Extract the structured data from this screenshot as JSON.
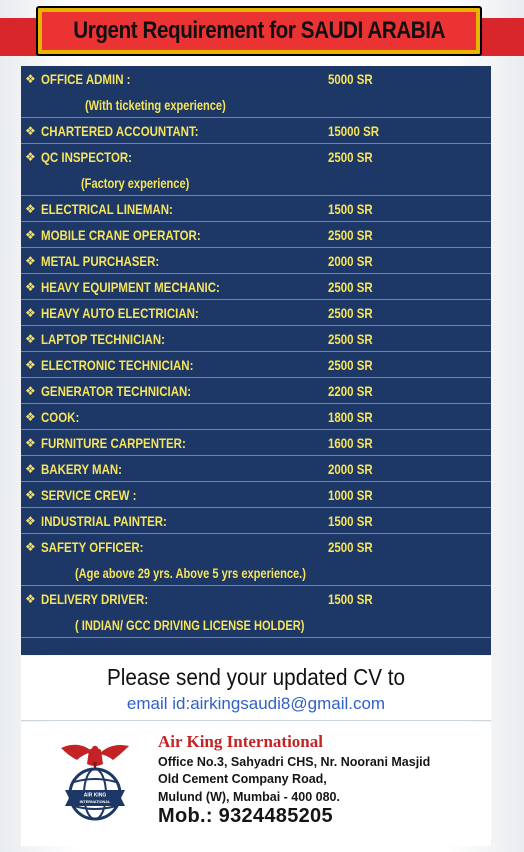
{
  "header": {
    "title": "Urgent Requirement for SAUDI ARABIA"
  },
  "colors": {
    "banner_red": "#ec3333",
    "banner_gold": "#e8b400",
    "panel_blue": "#1d3766",
    "job_text_yellow": "#f6e45a",
    "email_blue": "#3160c8",
    "company_red": "#c32324"
  },
  "jobs": [
    {
      "title": "OFFICE ADMIN :",
      "salary": "5000 SR",
      "note": "(With ticketing experience)"
    },
    {
      "title": "CHARTERED ACCOUNTANT:",
      "salary": "15000 SR",
      "note": null
    },
    {
      "title": "QC INSPECTOR:",
      "salary": "2500 SR",
      "note": "(Factory experience)"
    },
    {
      "title": "ELECTRICAL LINEMAN:",
      "salary": "1500 SR",
      "note": null
    },
    {
      "title": "MOBILE CRANE OPERATOR:",
      "salary": "2500 SR",
      "note": null
    },
    {
      "title": "METAL PURCHASER:",
      "salary": "2000 SR",
      "note": null
    },
    {
      "title": "HEAVY EQUIPMENT MECHANIC:",
      "salary": "2500 SR",
      "note": null
    },
    {
      "title": "HEAVY AUTO ELECTRICIAN:",
      "salary": "2500 SR",
      "note": null
    },
    {
      "title": "LAPTOP TECHNICIAN:",
      "salary": "2500 SR",
      "note": null
    },
    {
      "title": "ELECTRONIC TECHNICIAN:",
      "salary": "2500 SR",
      "note": null
    },
    {
      "title": "GENERATOR TECHNICIAN:",
      "salary": "2200 SR",
      "note": null
    },
    {
      "title": "COOK:",
      "salary": "1800 SR",
      "note": null
    },
    {
      "title": "FURNITURE CARPENTER:",
      "salary": "1600 SR",
      "note": null
    },
    {
      "title": "BAKERY MAN:",
      "salary": "2000 SR",
      "note": null
    },
    {
      "title": "SERVICE CREW :",
      "salary": "1000 SR",
      "note": null
    },
    {
      "title": "INDUSTRIAL PAINTER:",
      "salary": "1500 SR",
      "note": null
    },
    {
      "title": "SAFETY OFFICER:",
      "salary": "2500 SR",
      "note": "(Age above 29 yrs. Above 5 yrs experience.)"
    },
    {
      "title": "DELIVERY DRIVER:",
      "salary": "1500 SR",
      "note": "( INDIAN/ GCC DRIVING LICENSE HOLDER)"
    }
  ],
  "contact": {
    "cta": "Please send your updated CV to",
    "email": "email id:airkingsaudi8@gmail.com"
  },
  "company": {
    "logo_icon": "eagle-globe-logo",
    "logo_text": "AIR KING INTERNATIONAL",
    "name": "Air King International",
    "address_line1": "Office No.3, Sahyadri CHS, Nr. Noorani Masjid",
    "address_line2": "Old Cement Company Road,",
    "address_line3": "Mulund (W), Mumbai - 400 080.",
    "mobile": "Mob.: 9324485205"
  }
}
